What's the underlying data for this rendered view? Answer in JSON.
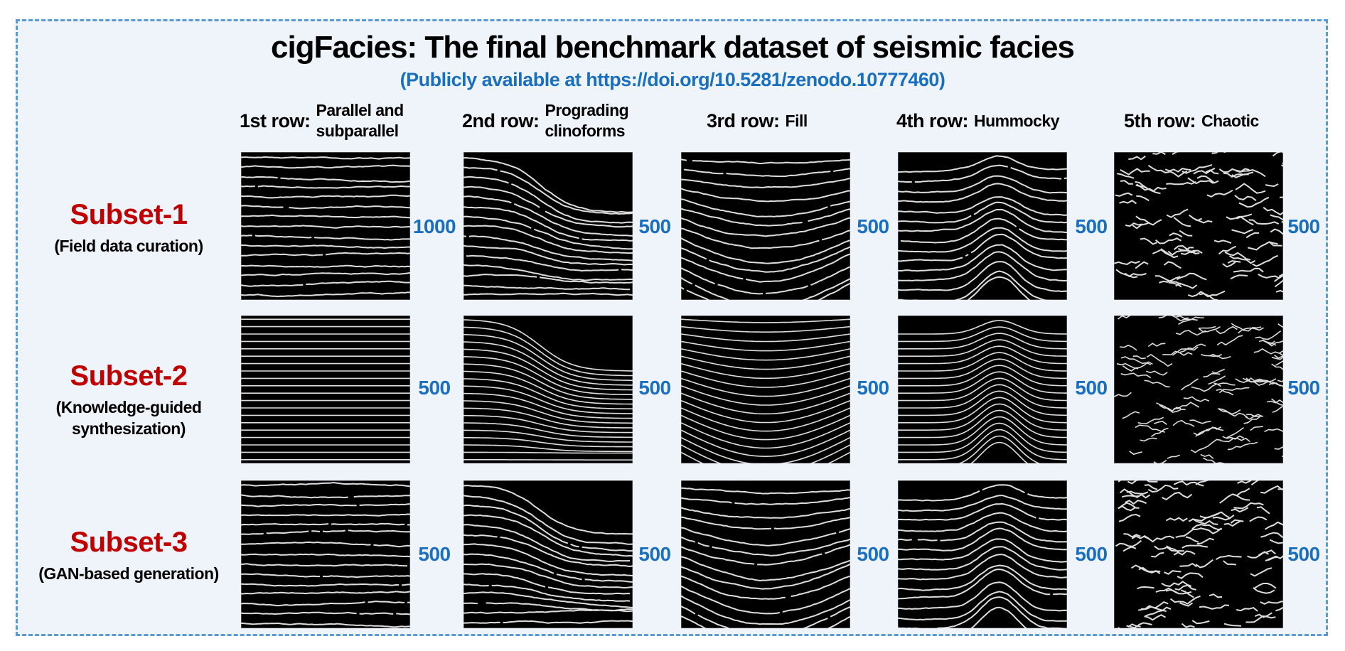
{
  "header": {
    "title": "cigFacies: The final benchmark dataset of seismic facies",
    "subtitle": "(Publicly available at https://doi.org/10.5281/zenodo.10777460)"
  },
  "columns": [
    {
      "label": "1st row:",
      "name": "Parallel and subparallel"
    },
    {
      "label": "2nd row:",
      "name": "Prograding clinoforms"
    },
    {
      "label": "3rd row:",
      "name": "Fill"
    },
    {
      "label": "4th row:",
      "name": "Hummocky"
    },
    {
      "label": "5th row:",
      "name": "Chaotic"
    }
  ],
  "rows": [
    {
      "name": "Subset-1",
      "description": "(Field data curation)",
      "counts": [
        1000,
        500,
        500,
        500,
        500
      ]
    },
    {
      "name": "Subset-2",
      "description": "(Knowledge-guided synthesization)",
      "counts": [
        500,
        500,
        500,
        500,
        500
      ]
    },
    {
      "name": "Subset-3",
      "description": "(GAN-based generation)",
      "counts": [
        500,
        500,
        500,
        500,
        500
      ]
    }
  ]
}
